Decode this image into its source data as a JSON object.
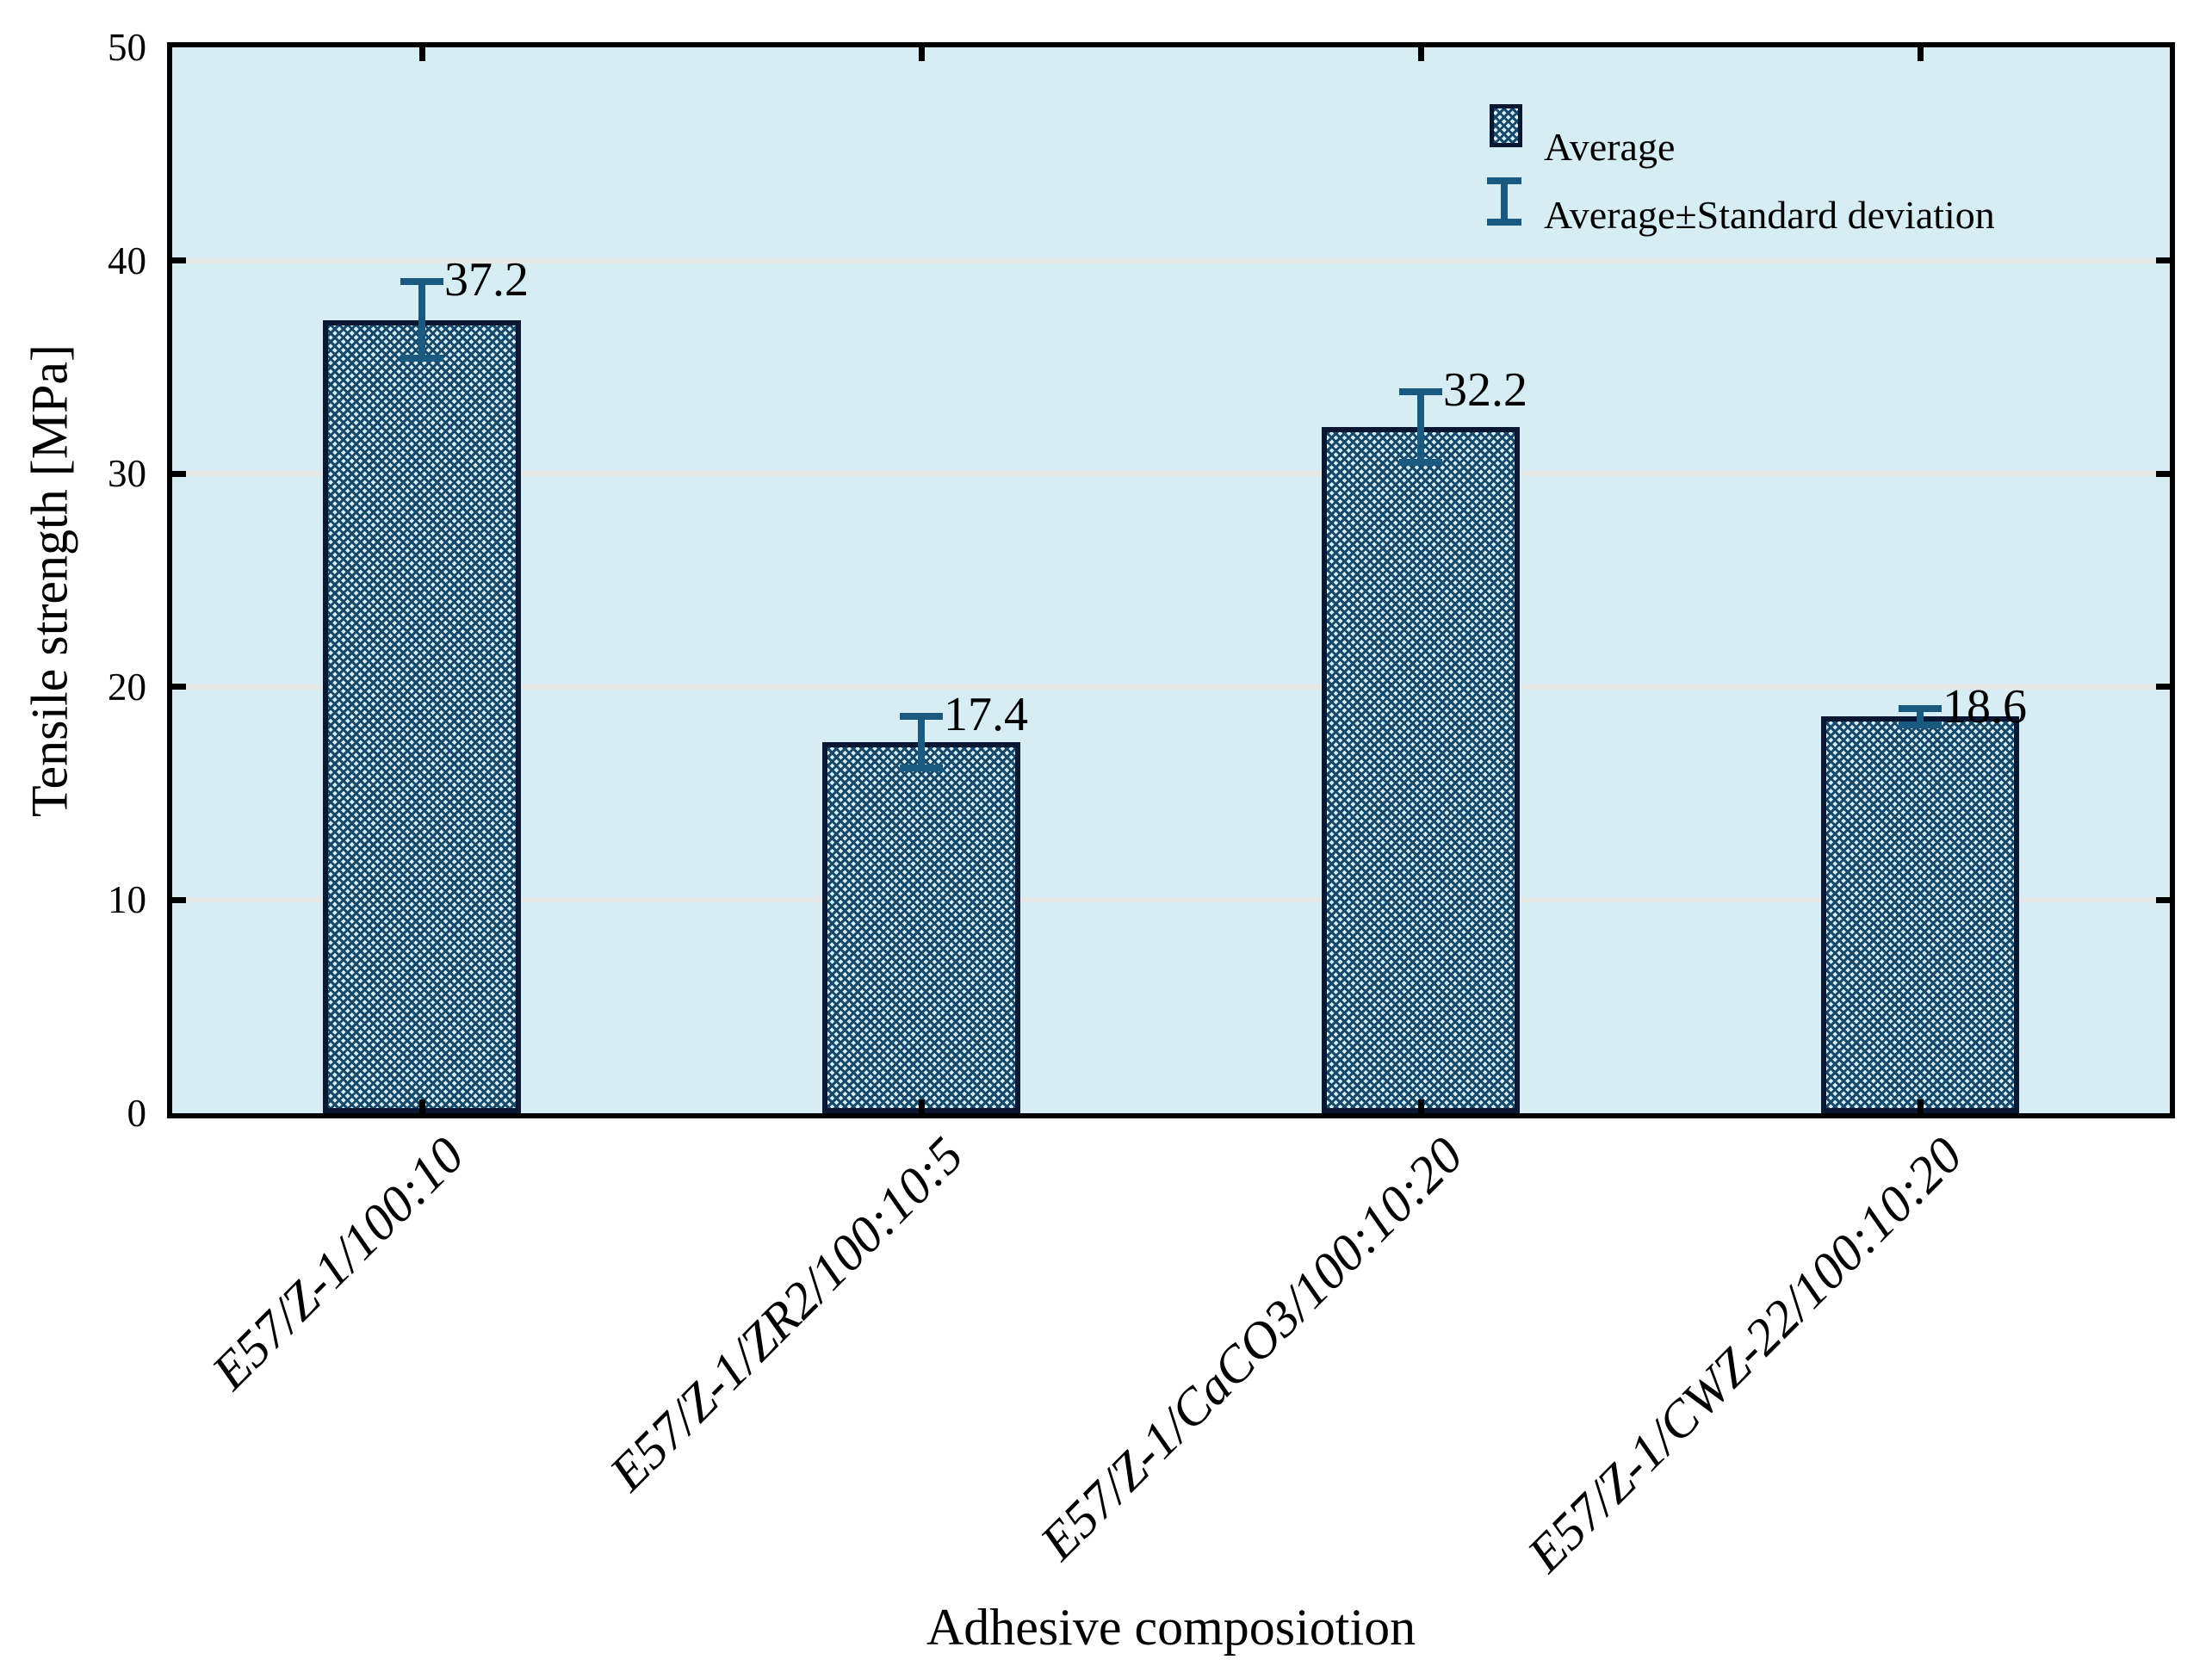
{
  "chart_data": {
    "type": "bar",
    "title": "",
    "xlabel": "Adhesive composiotion",
    "ylabel": "Tensile strength [MPa]",
    "categories": [
      "E57/Z-1/100:10",
      "E57/Z-1/ZR2/100:10:5",
      "E57/Z-1/CaCO3/100:10:20",
      "E57/Z-1/CWZ-22/100:10:20"
    ],
    "values": [
      37.2,
      17.4,
      32.2,
      18.6
    ],
    "value_labels": [
      "37.2",
      "17.4",
      "32.2",
      "18.6"
    ],
    "std_devs": [
      1.8,
      1.2,
      1.65,
      0.4
    ],
    "ylim": [
      0,
      50
    ],
    "yticks": [
      0,
      10,
      20,
      30,
      40,
      50
    ],
    "ytick_labels": [
      "0",
      "10",
      "20",
      "30",
      "40",
      "50"
    ],
    "grid": "horizontal-light",
    "legend": {
      "position": "top-right-inside",
      "items": [
        {
          "icon": "hatched-bar-swatch",
          "label": "Average"
        },
        {
          "icon": "error-bar-glyph",
          "label": "Average±Standard deviation"
        }
      ]
    },
    "colors": {
      "plot_background": "#d7edf4",
      "gridline": "#e8e8e6",
      "bar_hatch": "#17496b",
      "bar_hatch_background": "#d9eef5",
      "bar_border": "#0a1733",
      "error_bar": "#1a5a80",
      "frame": "#000000",
      "text": "#000000",
      "page_background": "#ffffff"
    }
  }
}
